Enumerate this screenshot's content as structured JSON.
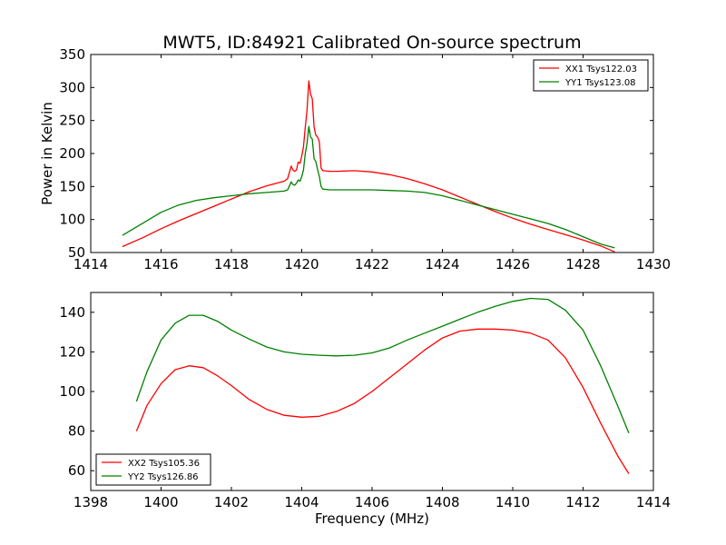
{
  "figure": {
    "title": "MWT5, ID:84921 Calibrated On-source spectrum",
    "background": "#ffffff"
  },
  "chart_data": [
    {
      "type": "line",
      "title": "MWT5, ID:84921 Calibrated On-source spectrum",
      "xlabel": "",
      "ylabel": "Power in Kelvin",
      "xlim": [
        1414,
        1430
      ],
      "ylim": [
        50,
        350
      ],
      "xticks": [
        1414,
        1416,
        1418,
        1420,
        1422,
        1424,
        1426,
        1428,
        1430
      ],
      "yticks": [
        50,
        100,
        150,
        200,
        250,
        300,
        350
      ],
      "grid": false,
      "legend": "top-right",
      "series": [
        {
          "name": "XX1 Tsys122.03",
          "color": "#ff0000",
          "x": [
            1414.9,
            1415.5,
            1416,
            1416.5,
            1417,
            1417.5,
            1418,
            1418.5,
            1419,
            1419.5,
            1419.6,
            1419.7,
            1419.75,
            1419.8,
            1419.85,
            1419.9,
            1419.95,
            1420.0,
            1420.05,
            1420.1,
            1420.15,
            1420.2,
            1420.25,
            1420.3,
            1420.35,
            1420.4,
            1420.45,
            1420.5,
            1420.55,
            1420.6,
            1420.8,
            1421,
            1421.5,
            1422,
            1422.5,
            1423,
            1423.5,
            1424,
            1424.5,
            1425,
            1425.5,
            1426,
            1426.5,
            1427,
            1427.5,
            1428,
            1428.5,
            1428.9
          ],
          "values": [
            59,
            73,
            86,
            98,
            109,
            120,
            131,
            142,
            151,
            158,
            162,
            181,
            175,
            173,
            175,
            187,
            185,
            196,
            210,
            240,
            265,
            310,
            290,
            283,
            240,
            228,
            225,
            218,
            178,
            174,
            173,
            173,
            174,
            172,
            168,
            162,
            154,
            145,
            134,
            123,
            112,
            102,
            93,
            85,
            77,
            69,
            60,
            51
          ]
        },
        {
          "name": "YY1 Tsys123.08",
          "color": "#008000",
          "x": [
            1414.9,
            1415.5,
            1416,
            1416.5,
            1417,
            1417.5,
            1418,
            1418.5,
            1419,
            1419.5,
            1419.6,
            1419.7,
            1419.75,
            1419.8,
            1419.85,
            1419.9,
            1419.95,
            1420.0,
            1420.05,
            1420.1,
            1420.15,
            1420.2,
            1420.25,
            1420.3,
            1420.35,
            1420.4,
            1420.45,
            1420.5,
            1420.55,
            1420.6,
            1420.8,
            1421,
            1421.5,
            1422,
            1422.5,
            1423,
            1423.5,
            1424,
            1424.5,
            1425,
            1425.5,
            1426,
            1426.5,
            1427,
            1427.5,
            1428,
            1428.5,
            1428.9
          ],
          "values": [
            76,
            95,
            111,
            122,
            129,
            133,
            136,
            139,
            141,
            143,
            145,
            157,
            153,
            152,
            155,
            160,
            158,
            165,
            175,
            200,
            215,
            241,
            225,
            222,
            192,
            188,
            176,
            165,
            150,
            146,
            145,
            145,
            145,
            145,
            144,
            143,
            141,
            136,
            129,
            122,
            115,
            108,
            101,
            94,
            85,
            74,
            63,
            57
          ]
        }
      ]
    },
    {
      "type": "line",
      "title": "",
      "xlabel": "Frequency (MHz)",
      "ylabel": "",
      "xlim": [
        1398,
        1414
      ],
      "ylim": [
        50,
        150
      ],
      "xticks": [
        1398,
        1400,
        1402,
        1404,
        1406,
        1408,
        1410,
        1412,
        1414
      ],
      "yticks": [
        60,
        80,
        100,
        120,
        140
      ],
      "grid": false,
      "legend": "bottom-left",
      "series": [
        {
          "name": "XX2 Tsys105.36",
          "color": "#ff0000",
          "x": [
            1399.3,
            1399.6,
            1400,
            1400.4,
            1400.8,
            1401.2,
            1401.6,
            1402,
            1402.5,
            1403,
            1403.5,
            1404,
            1404.5,
            1405,
            1405.5,
            1406,
            1406.5,
            1407,
            1407.5,
            1408,
            1408.5,
            1409,
            1409.5,
            1410,
            1410.5,
            1411,
            1411.5,
            1412,
            1412.5,
            1413,
            1413.3
          ],
          "values": [
            80,
            93,
            104,
            111,
            113,
            112,
            108,
            103,
            96,
            91,
            88,
            87,
            87.5,
            90,
            94,
            100,
            107,
            114,
            121,
            127,
            130.5,
            131.5,
            131.5,
            131,
            129.5,
            126,
            117,
            102,
            84,
            67,
            58.5
          ]
        },
        {
          "name": "YY2 Tsys126.86",
          "color": "#008000",
          "x": [
            1399.3,
            1399.6,
            1400,
            1400.4,
            1400.8,
            1401.2,
            1401.6,
            1402,
            1402.5,
            1403,
            1403.5,
            1404,
            1404.5,
            1405,
            1405.5,
            1406,
            1406.5,
            1407,
            1407.5,
            1408,
            1408.5,
            1409,
            1409.5,
            1410,
            1410.5,
            1411,
            1411.5,
            1412,
            1412.5,
            1413,
            1413.3
          ],
          "values": [
            95,
            110,
            126,
            134.5,
            138.5,
            138.5,
            135.5,
            131,
            126.5,
            122.5,
            120,
            118.8,
            118.3,
            118,
            118.3,
            119.5,
            122,
            126,
            129.5,
            133,
            136.5,
            140,
            143,
            145.5,
            147,
            146.5,
            141,
            131,
            113,
            92,
            79
          ]
        }
      ]
    }
  ]
}
